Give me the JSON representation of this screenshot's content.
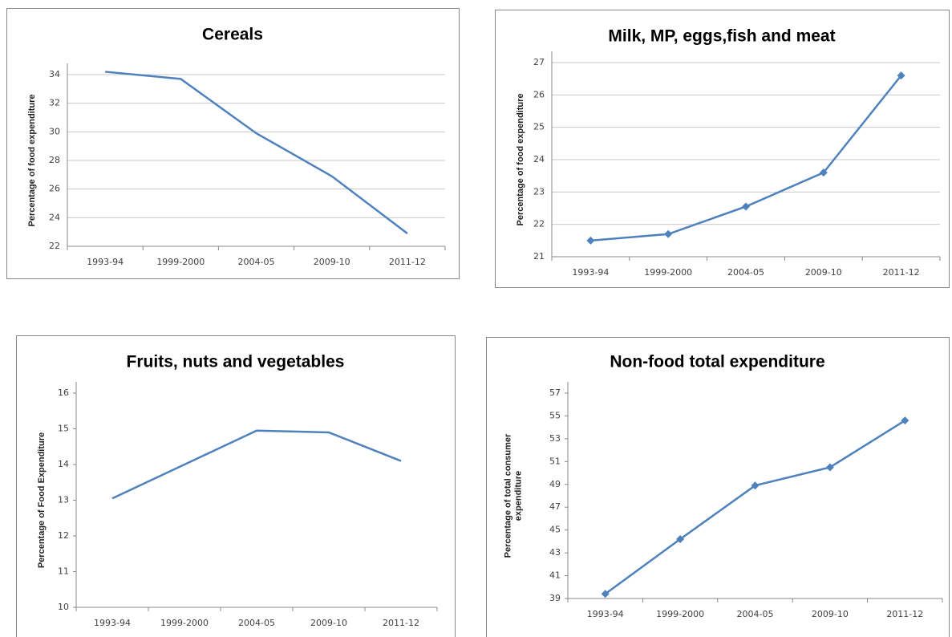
{
  "chart_data": [
    {
      "type": "line",
      "title": "Cereals",
      "y_label": "Percentage of food expenditure",
      "categories": [
        "1993-94",
        "1999-2000",
        "2004-05",
        "2009-10",
        "2011-12"
      ],
      "values": [
        34.2,
        33.7,
        29.9,
        26.9,
        22.9
      ],
      "color": "#4f81bd",
      "marker": "none",
      "ylim": [
        22,
        34
      ],
      "yticks": [
        22,
        24,
        26,
        28,
        30,
        32,
        34
      ],
      "grid": true
    },
    {
      "type": "line",
      "title": "Milk, MP, eggs,fish and meat",
      "y_label": "Percentage of food expenditure",
      "categories": [
        "1993-94",
        "1999-2000",
        "2004-05",
        "2009-10",
        "2011-12"
      ],
      "values": [
        21.5,
        21.7,
        22.55,
        23.6,
        26.6
      ],
      "color": "#4f81bd",
      "marker": "diamond",
      "ylim": [
        21,
        27
      ],
      "yticks": [
        21,
        22,
        23,
        24,
        25,
        26,
        27
      ],
      "grid": true
    },
    {
      "type": "line",
      "title": "Fruits, nuts and vegetables",
      "y_label": "Percentage of Food Expenditure",
      "categories": [
        "1993-94",
        "1999-2000",
        "2004-05",
        "2009-10",
        "2011-12"
      ],
      "values": [
        13.05,
        14.0,
        14.95,
        14.9,
        14.1
      ],
      "color": "#4f81bd",
      "marker": "none",
      "ylim": [
        10,
        16
      ],
      "yticks": [
        10,
        11,
        12,
        13,
        14,
        15,
        16
      ],
      "grid": false
    },
    {
      "type": "line",
      "title": "Non-food total expenditure",
      "y_label": [
        "Percentage of total consumer",
        "expenditure"
      ],
      "categories": [
        "1993-94",
        "1999-2000",
        "2004-05",
        "2009-10",
        "2011-12"
      ],
      "values": [
        39.4,
        44.2,
        48.9,
        50.5,
        54.6
      ],
      "color": "#4f81bd",
      "marker": "diamond",
      "ylim": [
        39,
        57
      ],
      "yticks": [
        39,
        41,
        43,
        45,
        47,
        49,
        51,
        53,
        55,
        57
      ],
      "grid": false
    }
  ]
}
